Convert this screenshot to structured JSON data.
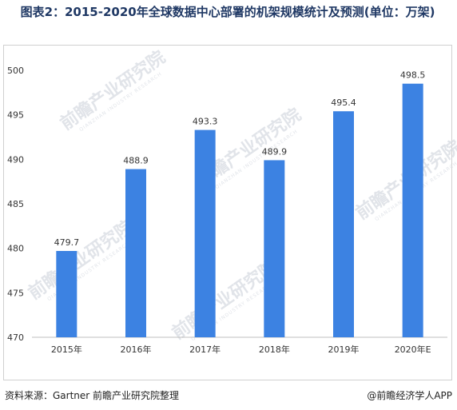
{
  "header": {
    "title": "图表2：2015-2020年全球数据中心部署的机架规模统计及预测(单位：万架)"
  },
  "watermark": {
    "text": "前瞻产业研究院",
    "subtext": "QIANZHAN INDUSTRY RESEARCH"
  },
  "footer": {
    "source": "资料来源：Gartner 前瞻产业研究院整理",
    "brand": "@前瞻经济学人APP"
  },
  "colors": {
    "bar": "#3c82e2",
    "title": "#1f3864",
    "axis_text": "#333333",
    "grid": "#e0e0e0"
  },
  "chart_data": {
    "type": "bar",
    "categories": [
      "2015年",
      "2016年",
      "2017年",
      "2018年",
      "2019年",
      "2020年E"
    ],
    "values": [
      479.7,
      488.9,
      493.3,
      489.9,
      495.4,
      498.5
    ],
    "value_labels": [
      "479.7",
      "488.9",
      "493.3",
      "489.9",
      "495.4",
      "498.5"
    ],
    "yticks": [
      470,
      475,
      480,
      485,
      490,
      495,
      500
    ],
    "ylim": [
      470,
      500
    ],
    "title": "图表2：2015-2020年全球数据中心部署的机架规模统计及预测(单位：万架)",
    "xlabel": "",
    "ylabel": "",
    "grid": false,
    "legend": "none"
  }
}
